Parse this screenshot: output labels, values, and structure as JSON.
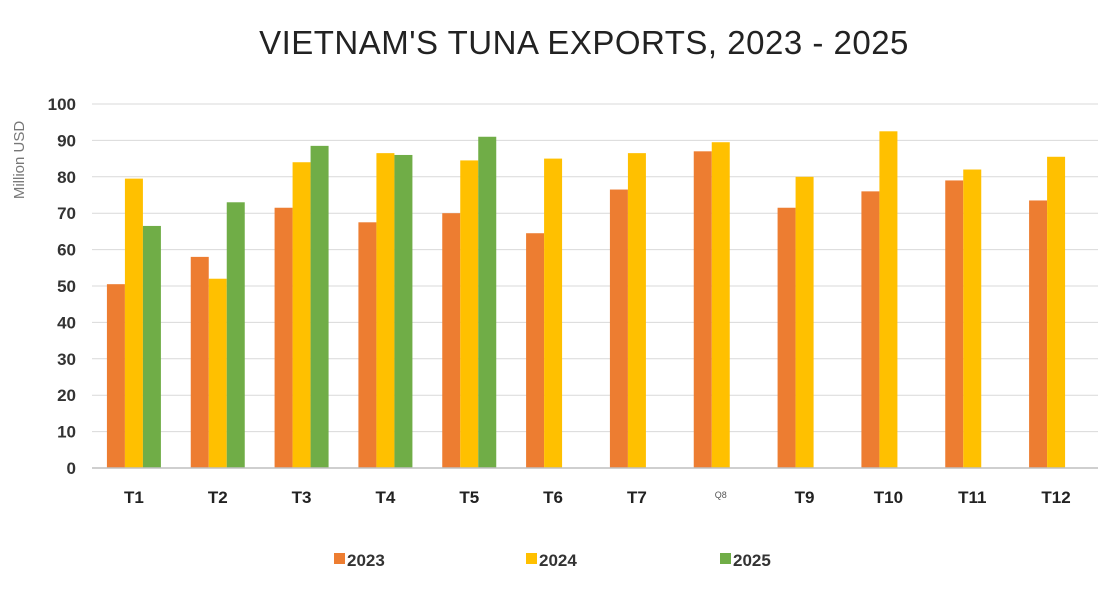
{
  "chart_data": {
    "type": "bar",
    "title": "VIETNAM'S TUNA EXPORTS, 2023 - 2025",
    "ylabel": "Million USD",
    "xlabel": "",
    "ylim": [
      0,
      100
    ],
    "yticks": [
      0,
      10,
      20,
      30,
      40,
      50,
      60,
      70,
      80,
      90,
      100
    ],
    "grid": true,
    "legend_position": "bottom",
    "categories": [
      "T1",
      "T2",
      "T3",
      "T4",
      "T5",
      "T6",
      "T7",
      "Q8",
      "T9",
      "T10",
      "T11",
      "T12"
    ],
    "series": [
      {
        "name": "2023",
        "color": "#ED7D31",
        "values": [
          50.5,
          58.0,
          71.5,
          67.5,
          70.0,
          64.5,
          76.5,
          87.0,
          71.5,
          76.0,
          79.0,
          73.5
        ]
      },
      {
        "name": "2024",
        "color": "#FFC000",
        "values": [
          79.5,
          52.0,
          84.0,
          86.5,
          84.5,
          85.0,
          86.5,
          89.5,
          80.0,
          92.5,
          82.0,
          85.5
        ]
      },
      {
        "name": "2025",
        "color": "#70AD47",
        "values": [
          66.5,
          73.0,
          88.5,
          86.0,
          91.0,
          null,
          null,
          null,
          null,
          null,
          null,
          null
        ]
      }
    ]
  }
}
